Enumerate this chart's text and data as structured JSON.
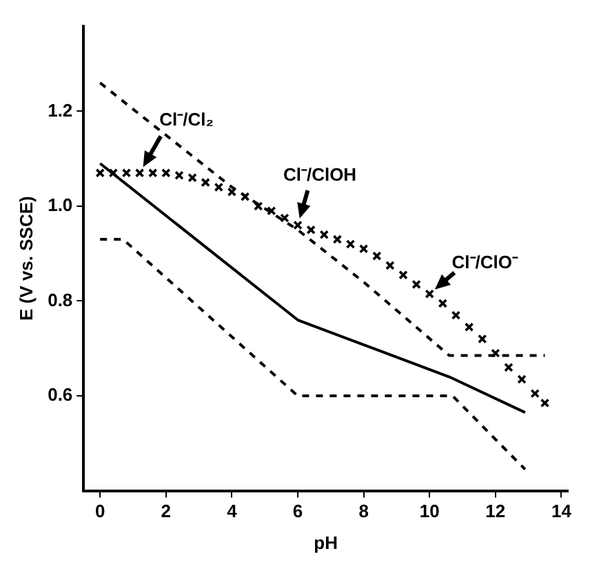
{
  "chart_data": {
    "type": "line",
    "xlabel": "pH",
    "ylabel": "E (V vs. SSCE)",
    "xlim": [
      -0.5,
      14.2
    ],
    "ylim": [
      0.4,
      1.38
    ],
    "xticks": [
      0,
      2,
      4,
      6,
      8,
      10,
      12,
      14
    ],
    "yticks": [
      {
        "value": 0.6,
        "label": "0.6"
      },
      {
        "value": 0.8,
        "label": "0.8"
      },
      {
        "value": 1,
        "label": "1.0"
      },
      {
        "value": 1.2,
        "label": "1.2"
      }
    ],
    "grid": false,
    "legend": false,
    "series": [
      {
        "color": "#000000",
        "line_style": "dashed",
        "x": [
          0,
          0.9,
          4,
          6,
          8,
          10.6,
          13.5
        ],
        "values": [
          1.26,
          1.21,
          1.04,
          0.95,
          0.84,
          0.685,
          0.685
        ]
      },
      {
        "color": "#000000",
        "line_style": "solid",
        "x": [
          0,
          6,
          10.6,
          12.9
        ],
        "values": [
          1.09,
          0.76,
          0.64,
          0.565
        ]
      },
      {
        "color": "#000000",
        "line_style": "dashed",
        "x": [
          0,
          0.7,
          6,
          10.7,
          12.9
        ],
        "values": [
          0.93,
          0.93,
          0.6,
          0.6,
          0.445
        ]
      },
      {
        "type": "scatter",
        "marker": "cross",
        "color": "#000000",
        "x": [
          0,
          0.4,
          0.8,
          1.2,
          1.6,
          2,
          2.4,
          2.8,
          3.2,
          3.6,
          4,
          4.4,
          4.8,
          5.2,
          5.6,
          6,
          6.4,
          6.8,
          7.2,
          7.6,
          8,
          8.4,
          8.8,
          9.2,
          9.6,
          10,
          10.4,
          10.8,
          11.2,
          11.6,
          12,
          12.4,
          12.8,
          13.2,
          13.5
        ],
        "values": [
          1.07,
          1.07,
          1.07,
          1.07,
          1.07,
          1.07,
          1.065,
          1.06,
          1.05,
          1.04,
          1.03,
          1.02,
          1.0,
          0.99,
          0.975,
          0.96,
          0.95,
          0.94,
          0.93,
          0.92,
          0.91,
          0.895,
          0.875,
          0.855,
          0.835,
          0.815,
          0.795,
          0.77,
          0.745,
          0.72,
          0.69,
          0.66,
          0.635,
          0.605,
          0.585
        ]
      }
    ],
    "annotations": [
      {
        "text": "Cl⁻/Cl₂",
        "x": 1.2,
        "y": 1.07
      },
      {
        "text": "Cl⁻/ClOH",
        "x": 6,
        "y": 0.96
      },
      {
        "text": "Cl⁻/ClO⁻",
        "x": 10,
        "y": 0.815
      }
    ]
  }
}
